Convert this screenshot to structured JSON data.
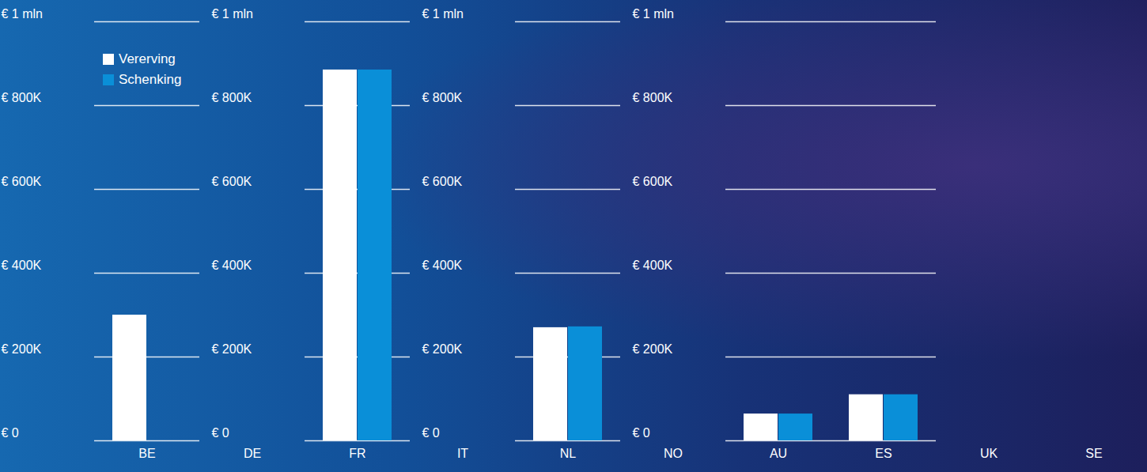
{
  "chart_data": {
    "type": "bar",
    "categories": [
      "BE",
      "DE",
      "FR",
      "IT",
      "NL",
      "NO",
      "AU",
      "ES",
      "UK",
      "SE"
    ],
    "series": [
      {
        "name": "Vererving",
        "color": "#ffffff",
        "values": [
          300000,
          null,
          885000,
          null,
          270000,
          null,
          64000,
          110000,
          null,
          null
        ]
      },
      {
        "name": "Schenking",
        "color": "#0a8fd8",
        "values": [
          null,
          null,
          885000,
          null,
          272000,
          null,
          64000,
          110000,
          null,
          null
        ]
      }
    ],
    "ylim": [
      0,
      1000000
    ],
    "yticks": [
      {
        "value": 0,
        "label": "€ 0"
      },
      {
        "value": 200000,
        "label": "€ 200K"
      },
      {
        "value": 400000,
        "label": "€ 400K"
      },
      {
        "value": 600000,
        "label": "€ 600K"
      },
      {
        "value": 800000,
        "label": "€ 800K"
      },
      {
        "value": 1000000,
        "label": "€ 1 mln"
      }
    ],
    "grid": true,
    "legend": "top-left"
  }
}
